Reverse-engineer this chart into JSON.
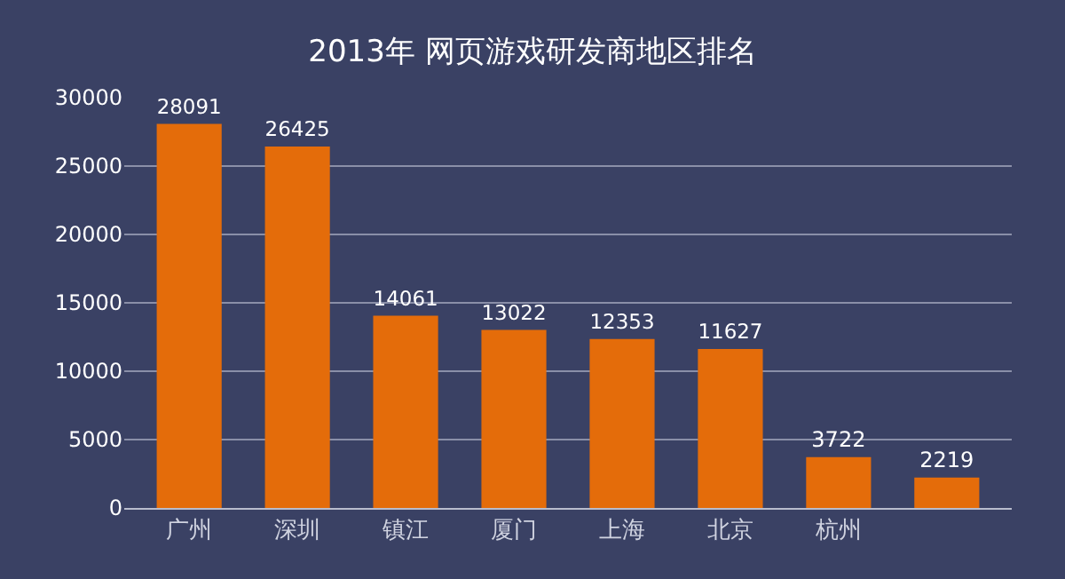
{
  "chart_data": {
    "type": "bar",
    "title": "2013年 网页游戏研发商地区排名",
    "categories": [
      "广州",
      "深圳",
      "镇江",
      "厦门",
      "上海",
      "北京",
      "杭州",
      null
    ],
    "values": [
      28091,
      26425,
      14061,
      13022,
      12353,
      11627,
      3722,
      2219
    ],
    "color": "#e46c0a",
    "ylim": [
      0,
      30000
    ],
    "yticks": [
      0,
      5000,
      10000,
      15000,
      20000,
      25000,
      30000
    ],
    "grid": "y",
    "data_labels": true
  }
}
